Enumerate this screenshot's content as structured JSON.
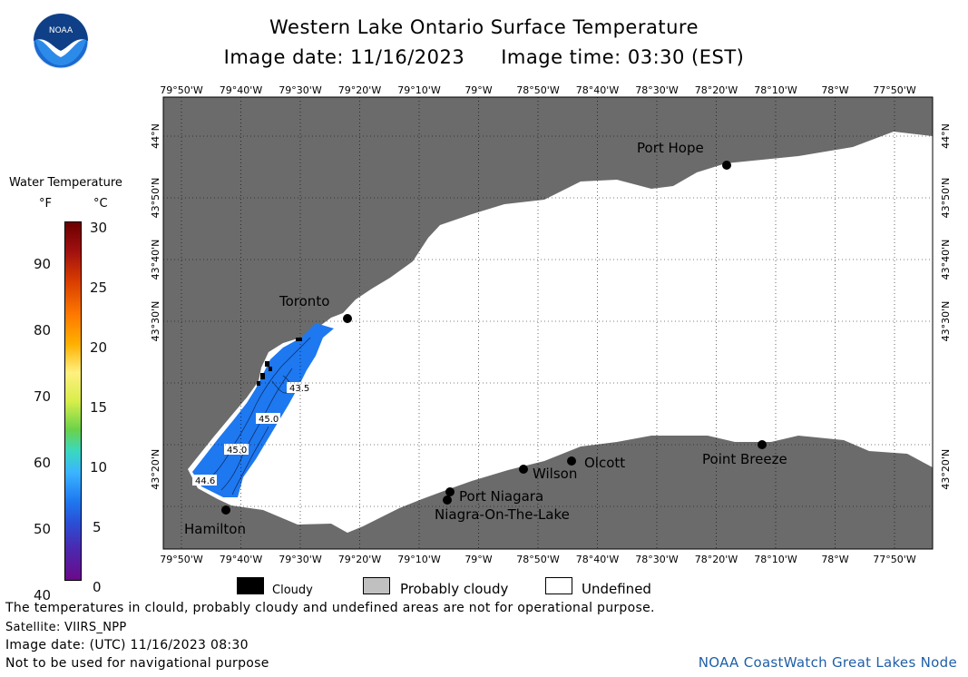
{
  "header": {
    "title": "Western Lake Ontario Surface Temperature",
    "image_date_label": "Image date: 11/16/2023",
    "image_time_label": "Image time: 03:30 (EST)",
    "logo_text": "NOAA"
  },
  "legend": {
    "title": "Water Temperature",
    "unit_f": "°F",
    "unit_c": "°C",
    "ticks_f": [
      "90",
      "80",
      "70",
      "60",
      "50",
      "40"
    ],
    "ticks_c": [
      "30",
      "25",
      "20",
      "15",
      "10",
      "5",
      "0"
    ]
  },
  "axes": {
    "lon_labels": [
      "79°50'W",
      "79°40'W",
      "79°30'W",
      "79°20'W",
      "79°10'W",
      "79°W",
      "78°50'W",
      "78°40'W",
      "78°30'W",
      "78°20'W",
      "78°10'W",
      "78°W",
      "77°50'W"
    ],
    "lat_labels": [
      "44°N",
      "43°50'N",
      "43°40'N",
      "43°30'N",
      "43°20'N"
    ],
    "lat_right_top": "44°N"
  },
  "places": {
    "port_hope": "Port Hope",
    "toronto": "Toronto",
    "hamilton": "Hamilton",
    "port_niagara": "Port Niagara",
    "niagara_on_the_lake": "Niagra-On-The-Lake",
    "wilson": "Wilson",
    "olcott": "Olcott",
    "point_breeze": "Point Breeze"
  },
  "isotherms": [
    "43.5",
    "45.0",
    "45.0",
    "44.6"
  ],
  "key": {
    "cloudy": "Cloudy",
    "probably_cloudy": "Probably cloudy",
    "undefined": "Undefined"
  },
  "footer": {
    "disclaimer": "The temperatures in clould, probably cloudy and undefined areas are not for operational purpose.",
    "satellite": "Satellite: VIIRS_NPP",
    "utc_date": "Image date: (UTC) 11/16/2023  08:30",
    "navigation": "Not to be used for navigational purpose",
    "credit": "NOAA CoastWatch Great Lakes Node"
  },
  "colors": {
    "land": "#6b6b6b",
    "water_undefined": "#ffffff",
    "water_temp": "#1e78f0",
    "cloudy": "#000000",
    "probably_cloudy": "#c0c0c0",
    "credit_text": "#1f5fa8"
  }
}
